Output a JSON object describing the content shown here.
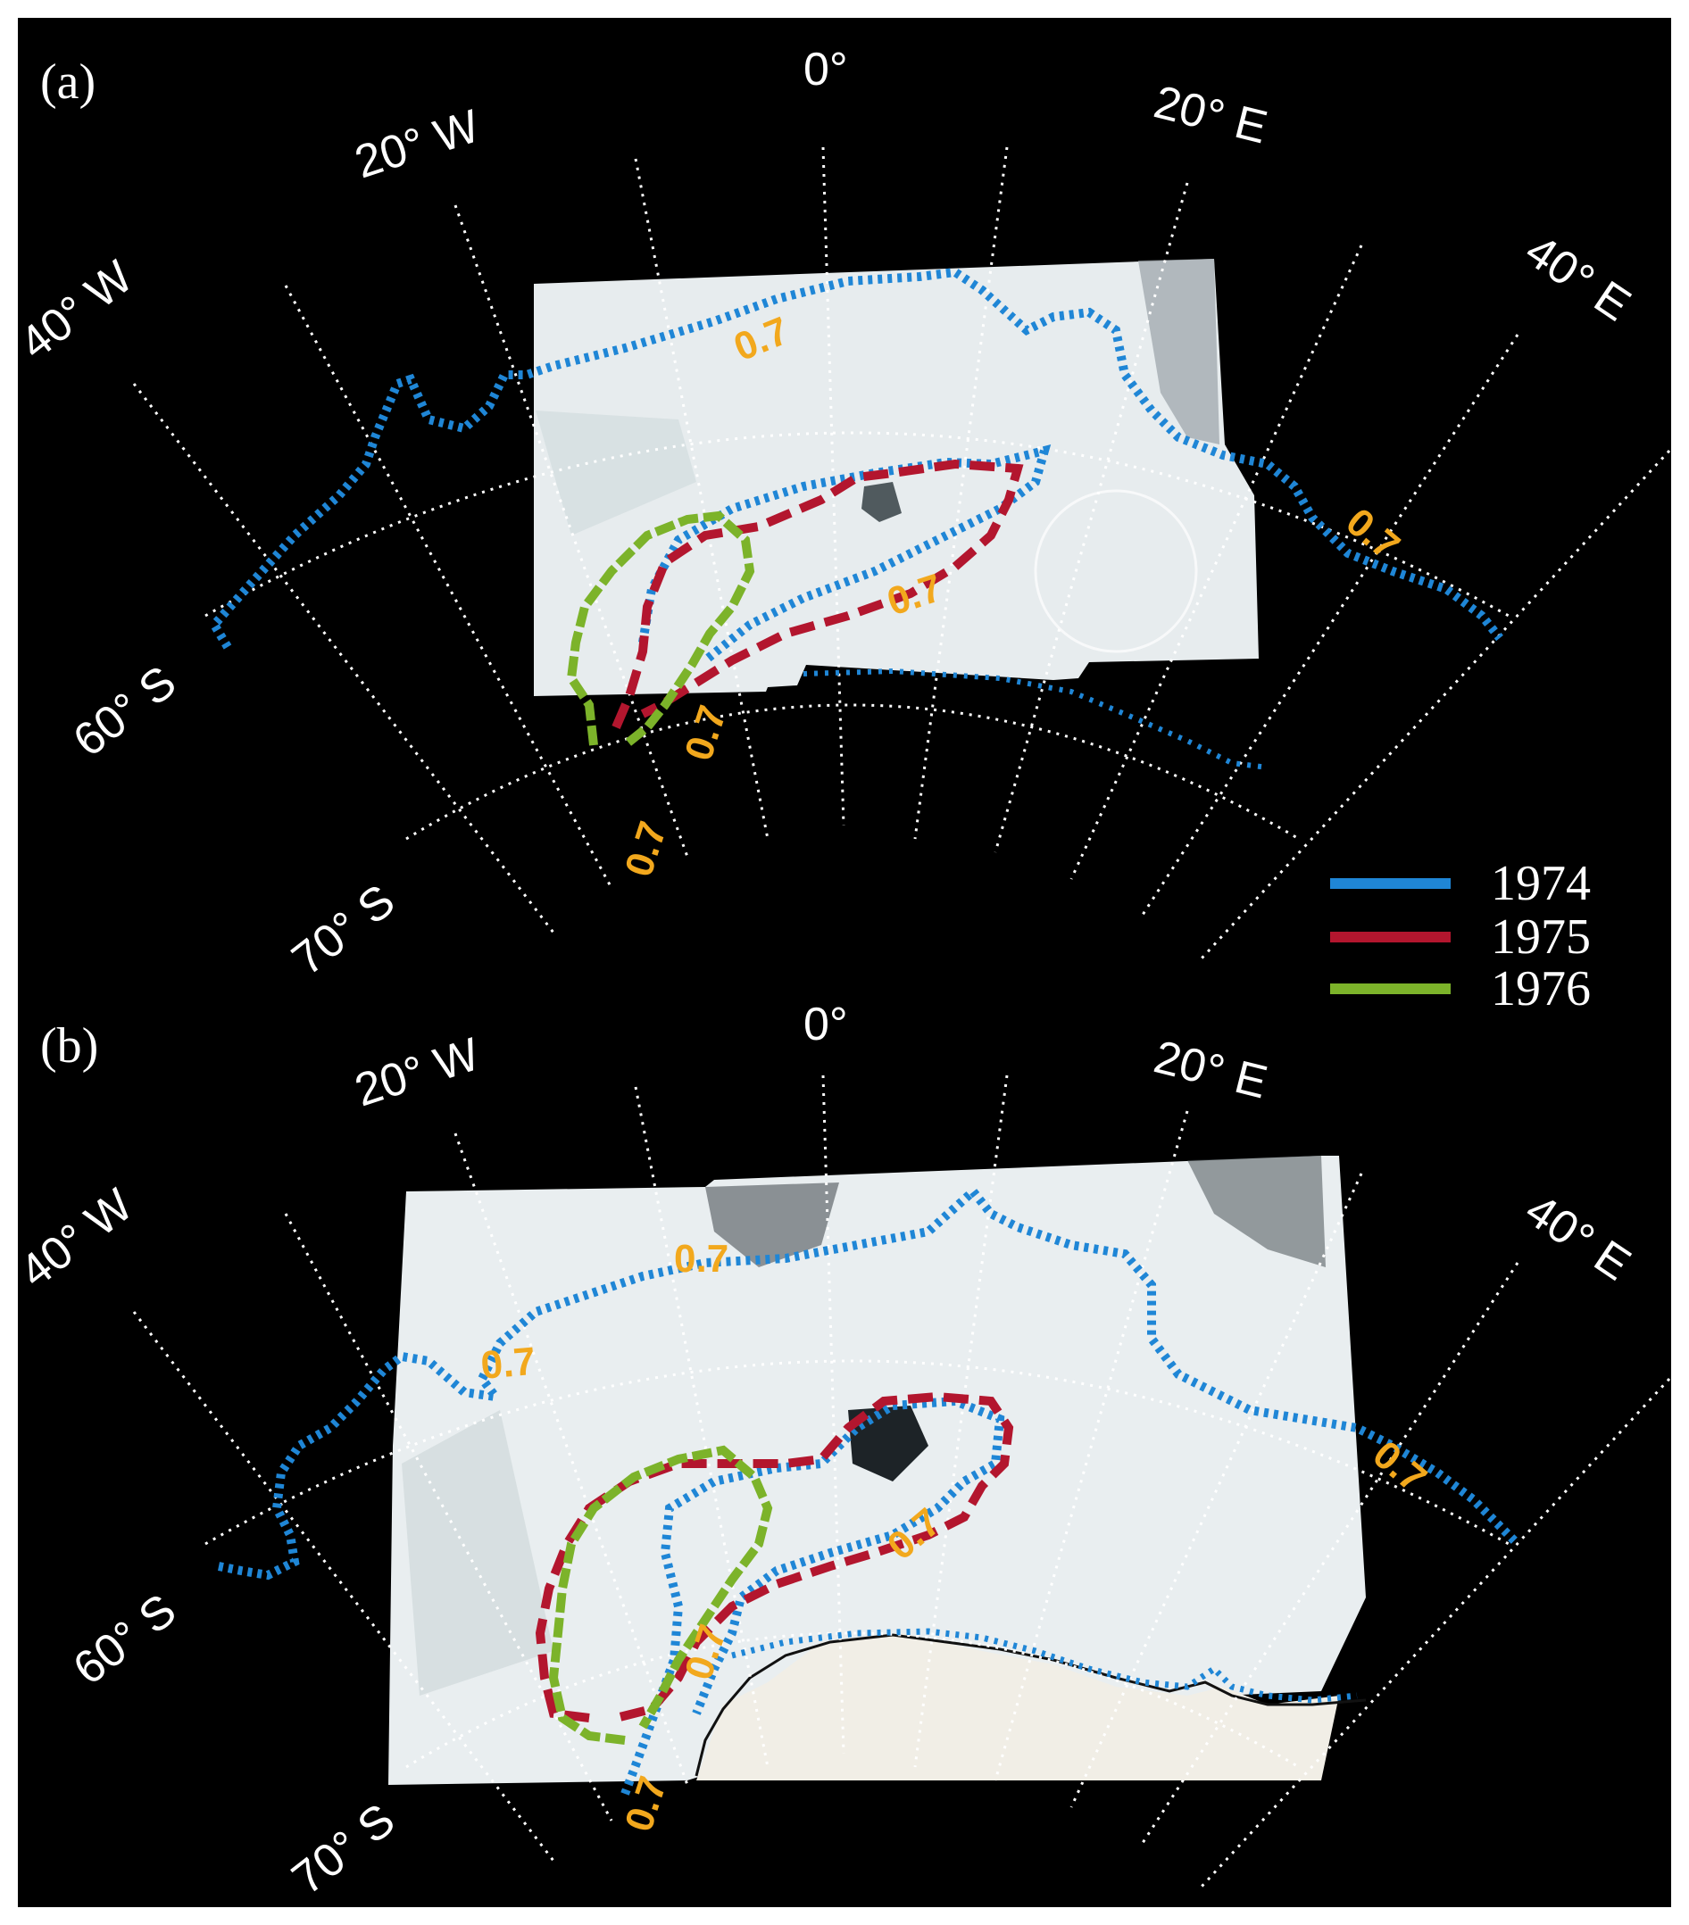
{
  "colors": {
    "background": "#000000",
    "frame": "#ffffff",
    "ice_fill": "#e9eef0",
    "y1974": "#1f86d6",
    "y1975": "#b3162e",
    "y1976": "#7cb32a",
    "contour_label": "#f2a81d",
    "grid": "#ffffff",
    "coast": "#111111"
  },
  "panels": [
    {
      "label": "(a)",
      "meridians": [
        "40° W",
        "20° W",
        "0°",
        "20° E",
        "40° E"
      ],
      "parallels": [
        "60° S",
        "70° S"
      ],
      "contour_labels": [
        "0.7",
        "0.7",
        "0.7",
        "0.7",
        "0.7"
      ]
    },
    {
      "label": "(b)",
      "meridians": [
        "40° W",
        "20° W",
        "0°",
        "20° E",
        "40° E"
      ],
      "parallels": [
        "60° S",
        "70° S"
      ],
      "contour_labels": [
        "0.7",
        "0.7",
        "0.7",
        "0.7",
        "0.7",
        "0.7"
      ]
    }
  ],
  "legend": [
    {
      "year": "1974",
      "color": "#1f86d6"
    },
    {
      "year": "1975",
      "color": "#b3162e"
    },
    {
      "year": "1976",
      "color": "#7cb32a"
    }
  ]
}
